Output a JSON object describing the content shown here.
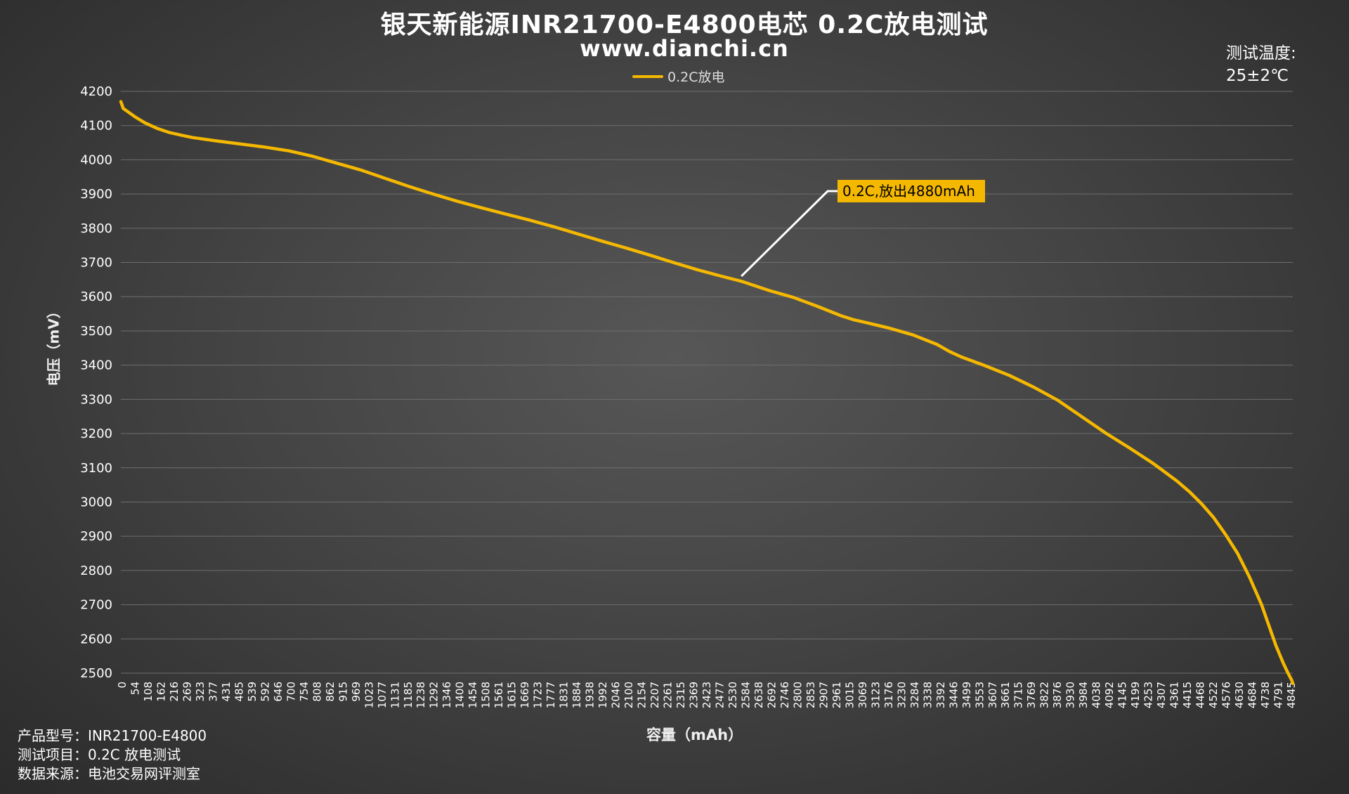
{
  "title": "银天新能源INR21700-E4800电芯 0.2C放电测试",
  "subtitle": "www.dianchi.cn",
  "temperature": {
    "label": "测试温度:",
    "value": "25±2℃"
  },
  "footer": {
    "model": "产品型号：INR21700-E4800",
    "item": "测试项目：0.2C 放电测试",
    "source": "数据来源：电池交易网评测室"
  },
  "chart_data": {
    "type": "line",
    "title": "银天新能源INR21700-E4800电芯 0.2C放电测试",
    "xlabel": "容量（mAh）",
    "ylabel": "电压（mV）",
    "ylim": [
      2500,
      4200
    ],
    "xlim": [
      0,
      4880
    ],
    "yticks": [
      2500,
      2600,
      2700,
      2800,
      2900,
      3000,
      3100,
      3200,
      3300,
      3400,
      3500,
      3600,
      3700,
      3800,
      3900,
      4000,
      4100,
      4200
    ],
    "xticks": [
      0,
      54,
      108,
      162,
      216,
      269,
      323,
      377,
      431,
      485,
      539,
      592,
      646,
      700,
      754,
      808,
      862,
      915,
      969,
      1023,
      1077,
      1131,
      1185,
      1238,
      1292,
      1346,
      1400,
      1454,
      1508,
      1561,
      1615,
      1669,
      1723,
      1777,
      1831,
      1884,
      1938,
      1992,
      2046,
      2100,
      2154,
      2207,
      2261,
      2315,
      2369,
      2423,
      2477,
      2530,
      2584,
      2638,
      2692,
      2746,
      2800,
      2853,
      2907,
      2961,
      3015,
      3069,
      3123,
      3176,
      3230,
      3284,
      3338,
      3392,
      3446,
      3499,
      3553,
      3607,
      3661,
      3715,
      3769,
      3822,
      3876,
      3930,
      3984,
      4038,
      4092,
      4145,
      4199,
      4253,
      4307,
      4361,
      4415,
      4468,
      4522,
      4576,
      4630,
      4684,
      4738,
      4791,
      4845
    ],
    "grid": true,
    "legend": "top-center",
    "series": [
      {
        "name": "0.2C放电",
        "color": "#f5b800",
        "x": [
          0,
          10,
          30,
          60,
          100,
          150,
          200,
          250,
          300,
          400,
          500,
          600,
          700,
          800,
          900,
          1000,
          1100,
          1200,
          1300,
          1400,
          1500,
          1600,
          1700,
          1800,
          1900,
          2000,
          2100,
          2200,
          2300,
          2400,
          2500,
          2584,
          2700,
          2800,
          2900,
          3000,
          3050,
          3100,
          3200,
          3300,
          3400,
          3450,
          3500,
          3600,
          3700,
          3800,
          3900,
          4000,
          4100,
          4200,
          4300,
          4400,
          4450,
          4500,
          4550,
          4600,
          4650,
          4700,
          4750,
          4780,
          4810,
          4840,
          4860,
          4875,
          4880
        ],
        "y": [
          4170,
          4150,
          4140,
          4125,
          4108,
          4092,
          4080,
          4072,
          4065,
          4055,
          4046,
          4037,
          4026,
          4010,
          3990,
          3970,
          3946,
          3922,
          3900,
          3879,
          3860,
          3842,
          3824,
          3805,
          3784,
          3763,
          3743,
          3722,
          3700,
          3679,
          3660,
          3645,
          3618,
          3598,
          3572,
          3544,
          3533,
          3525,
          3508,
          3488,
          3460,
          3440,
          3424,
          3398,
          3370,
          3336,
          3298,
          3250,
          3202,
          3158,
          3112,
          3060,
          3030,
          2995,
          2955,
          2905,
          2850,
          2780,
          2700,
          2640,
          2580,
          2530,
          2500,
          2480,
          2470
        ]
      }
    ],
    "annotations": [
      {
        "text": "0.2C,放出4880mAh",
        "x": 2584,
        "y": 3660
      }
    ]
  }
}
